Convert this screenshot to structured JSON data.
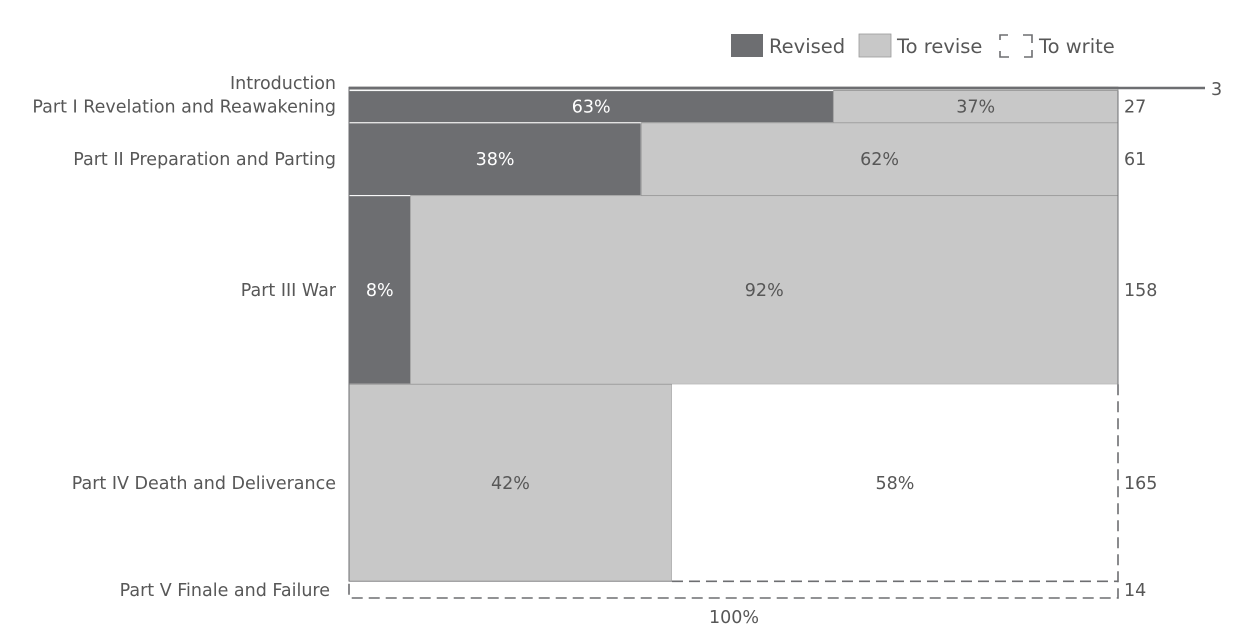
{
  "chart_data": {
    "type": "bar",
    "subtype": "marimekko",
    "orientation": "horizontal",
    "legend": {
      "placement": "top-right",
      "entries": [
        {
          "name": "Revised",
          "color": "#6d6e71",
          "style": "solid"
        },
        {
          "name": "To revise",
          "color": "#c8c8c8",
          "style": "solid"
        },
        {
          "name": "To write",
          "color": "#ffffff",
          "style": "dashed"
        }
      ]
    },
    "categories": [
      "Introduction",
      "Part I Revelation and Reawakening",
      "Part II Preparation and Parting",
      "Part III War",
      "Part IV Death and Deliverance",
      "Part V Finale and Failure"
    ],
    "totals": [
      3,
      27,
      61,
      158,
      165,
      14
    ],
    "total_labels": [
      "3",
      "27",
      "61",
      "158",
      "165",
      "14"
    ],
    "series": [
      {
        "name": "Revised",
        "values": [
          0,
          63,
          38,
          8,
          0,
          0
        ]
      },
      {
        "name": "To revise",
        "values": [
          100,
          37,
          62,
          92,
          42,
          0
        ]
      },
      {
        "name": "To write",
        "values": [
          0,
          0,
          0,
          0,
          58,
          100
        ]
      }
    ],
    "segment_labels": [
      [
        "",
        "",
        ""
      ],
      [
        "63%",
        "37%",
        ""
      ],
      [
        "38%",
        "62%",
        ""
      ],
      [
        "8%",
        "92%",
        ""
      ],
      [
        "",
        "42%",
        "58%"
      ],
      [
        "",
        "",
        ""
      ]
    ],
    "x_axis_label": "100%",
    "unit": "%",
    "grid": false
  }
}
